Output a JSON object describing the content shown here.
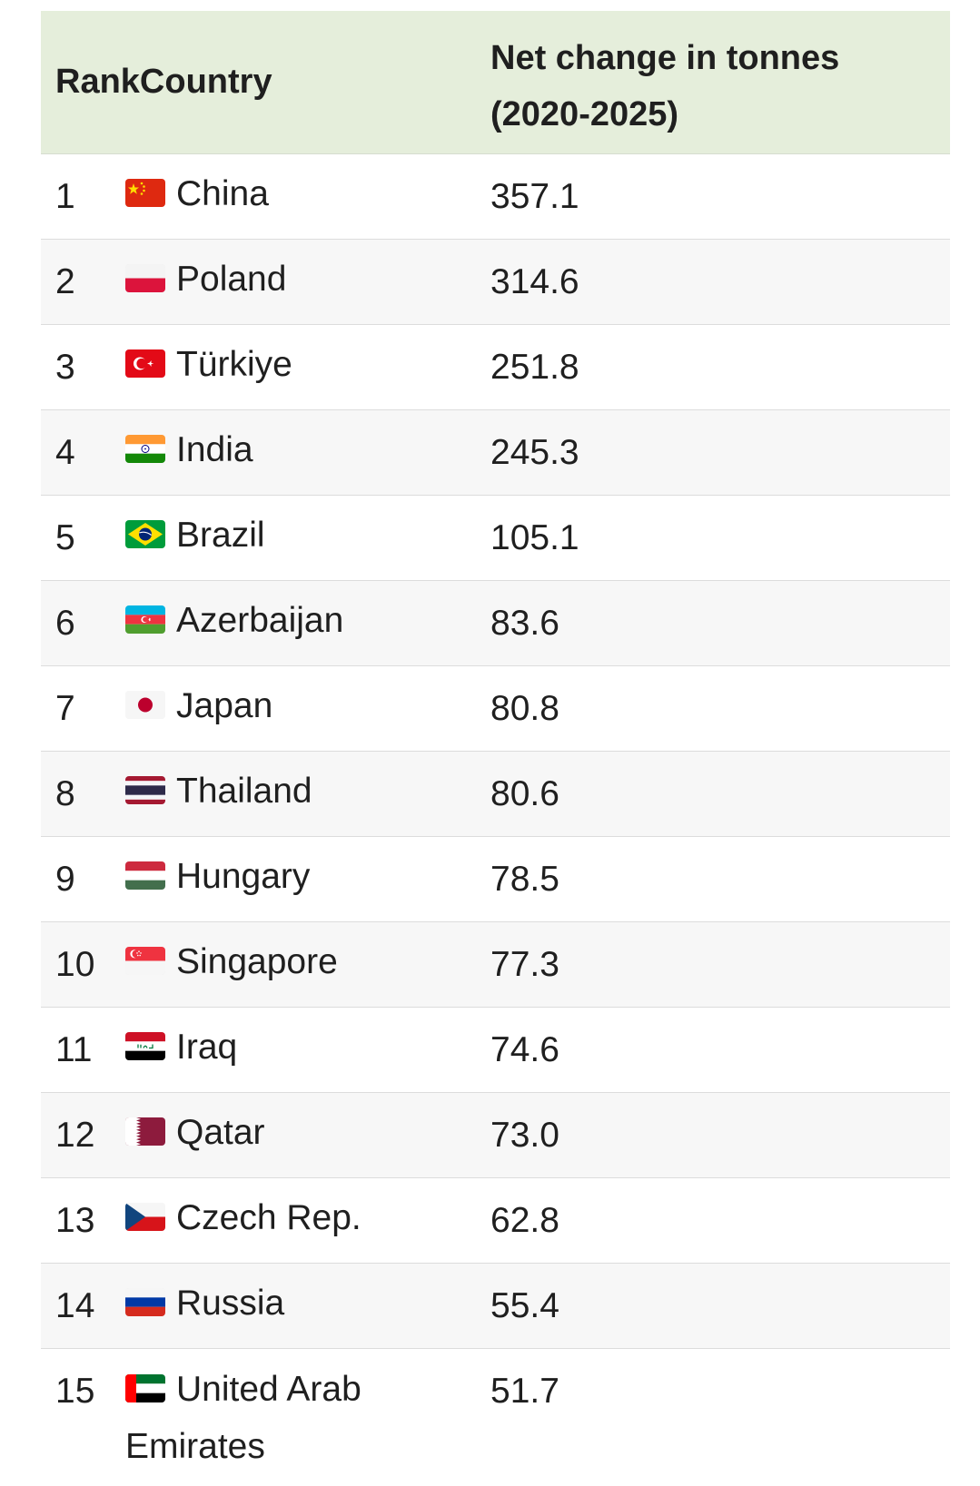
{
  "header": {
    "rank_country": "RankCountry",
    "net_change_line1": "Net change in tonnes",
    "net_change_line2": "(2020-2025)"
  },
  "rows": [
    {
      "rank": "1",
      "country": "China",
      "value": "357.1",
      "flag": "china-flag-icon"
    },
    {
      "rank": "2",
      "country": "Poland",
      "value": "314.6",
      "flag": "poland-flag-icon"
    },
    {
      "rank": "3",
      "country": "Türkiye",
      "value": "251.8",
      "flag": "turkey-flag-icon"
    },
    {
      "rank": "4",
      "country": "India",
      "value": "245.3",
      "flag": "india-flag-icon"
    },
    {
      "rank": "5",
      "country": "Brazil",
      "value": "105.1",
      "flag": "brazil-flag-icon"
    },
    {
      "rank": "6",
      "country": "Azerbaijan",
      "value": "83.6",
      "flag": "azerbaijan-flag-icon"
    },
    {
      "rank": "7",
      "country": "Japan",
      "value": "80.8",
      "flag": "japan-flag-icon"
    },
    {
      "rank": "8",
      "country": "Thailand",
      "value": "80.6",
      "flag": "thailand-flag-icon"
    },
    {
      "rank": "9",
      "country": "Hungary",
      "value": "78.5",
      "flag": "hungary-flag-icon"
    },
    {
      "rank": "10",
      "country": "Singapore",
      "value": "77.3",
      "flag": "singapore-flag-icon"
    },
    {
      "rank": "11",
      "country": "Iraq",
      "value": "74.6",
      "flag": "iraq-flag-icon"
    },
    {
      "rank": "12",
      "country": "Qatar",
      "value": "73.0",
      "flag": "qatar-flag-icon"
    },
    {
      "rank": "13",
      "country": "Czech Rep.",
      "value": "62.8",
      "flag": "czech-flag-icon"
    },
    {
      "rank": "14",
      "country": "Russia",
      "value": "55.4",
      "flag": "russia-flag-icon"
    },
    {
      "rank": "15",
      "country": "United Arab Emirates",
      "value": "51.7",
      "flag": "uae-flag-icon"
    }
  ],
  "colors": {
    "header_bg": "#e5eedb",
    "row_alt_bg": "#f7f7f7",
    "row_border": "#dcdcdc",
    "text": "#1f1f1f"
  }
}
